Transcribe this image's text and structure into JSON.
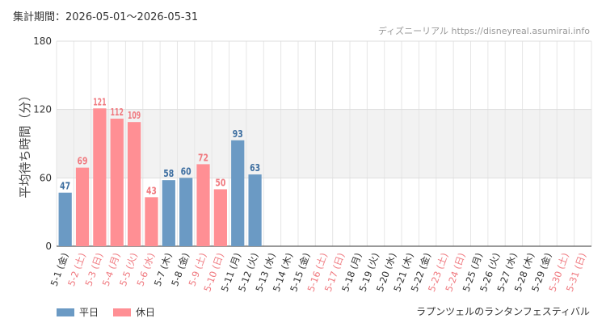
{
  "header": {
    "period": "集計期間：2026-05-01～2026-05-31",
    "site": "ディズニーリアル https://disneyreal.asumirai.info"
  },
  "legend": {
    "weekday": "平日",
    "holiday": "休日"
  },
  "attraction": "ラプンツェルのランタンフェスティバル",
  "colors": {
    "weekday": "#6b9ac4",
    "holiday": "#ff8f94",
    "weekday_label": "#3d6ea0",
    "holiday_label": "#f07a80",
    "band": "#f2f2f2"
  },
  "chart_data": {
    "type": "bar",
    "ylabel": "平均待ち時間（分）",
    "ylim": [
      0,
      180
    ],
    "yticks": [
      0,
      60,
      120,
      180
    ],
    "band": [
      60,
      120
    ],
    "categories": [
      "5-1 (金)",
      "5-2 (土)",
      "5-3 (日)",
      "5-4 (月)",
      "5-5 (火)",
      "5-6 (水)",
      "5-7 (木)",
      "5-8 (金)",
      "5-9 (土)",
      "5-10 (日)",
      "5-11 (月)",
      "5-12 (火)",
      "5-13 (水)",
      "5-14 (木)",
      "5-15 (金)",
      "5-16 (土)",
      "5-17 (日)",
      "5-18 (月)",
      "5-19 (火)",
      "5-20 (水)",
      "5-21 (木)",
      "5-22 (金)",
      "5-23 (土)",
      "5-24 (日)",
      "5-25 (月)",
      "5-26 (火)",
      "5-27 (水)",
      "5-28 (木)",
      "5-29 (金)",
      "5-30 (土)",
      "5-31 (日)"
    ],
    "values": [
      47,
      69,
      121,
      112,
      109,
      43,
      58,
      60,
      72,
      50,
      93,
      63,
      null,
      null,
      null,
      null,
      null,
      null,
      null,
      null,
      null,
      null,
      null,
      null,
      null,
      null,
      null,
      null,
      null,
      null,
      null
    ],
    "day_type": [
      "weekday",
      "holiday",
      "holiday",
      "holiday",
      "holiday",
      "holiday",
      "weekday",
      "weekday",
      "holiday",
      "holiday",
      "weekday",
      "weekday",
      "weekday",
      "weekday",
      "weekday",
      "holiday",
      "holiday",
      "weekday",
      "weekday",
      "weekday",
      "weekday",
      "weekday",
      "holiday",
      "holiday",
      "weekday",
      "weekday",
      "weekday",
      "weekday",
      "weekday",
      "holiday",
      "holiday"
    ]
  }
}
